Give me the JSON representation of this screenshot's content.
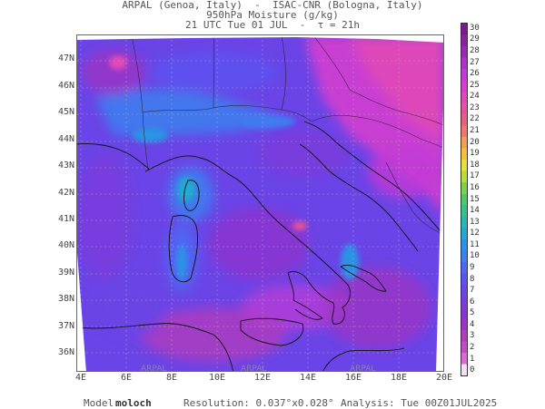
{
  "header": {
    "line1": "ARPAL (Genoa, Italy)  -  ISAC-CNR (Bologna, Italy)",
    "line2": "950hPa Moisture (g/kg)",
    "line3": "21 UTC Tue 01 JUL  -  τ = 21h"
  },
  "map": {
    "lat_labels": [
      "47N",
      "46N",
      "45N",
      "44N",
      "43N",
      "42N",
      "41N",
      "40N",
      "39N",
      "38N",
      "37N",
      "36N"
    ],
    "lon_labels": [
      "4E",
      "6E",
      "8E",
      "10E",
      "12E",
      "14E",
      "16E",
      "18E",
      "20E"
    ],
    "watermark": "ARPAL"
  },
  "colorbar": {
    "labels": [
      "30",
      "29",
      "28",
      "27",
      "26",
      "25",
      "24",
      "23",
      "22",
      "21",
      "20",
      "19",
      "18",
      "17",
      "16",
      "15",
      "14",
      "13",
      "12",
      "11",
      "10",
      "9",
      "8",
      "7",
      "6",
      "5",
      "4",
      "3",
      "2",
      "1",
      "0"
    ],
    "colors": {
      "30": "#7a1a8c",
      "29": "#8a1fa0",
      "28": "#9b27b5",
      "27": "#ad33c8",
      "26": "#c23ad6",
      "25": "#d43fcf",
      "24": "#e048b8",
      "23": "#e4539e",
      "22": "#e85f84",
      "21": "#ec7a68",
      "20": "#f0a050",
      "19": "#f3c040",
      "18": "#e9dd3a",
      "17": "#b6dd3c",
      "16": "#7bd34a",
      "15": "#4fc86a",
      "14": "#36c08f",
      "13": "#2ab6b3",
      "12": "#22a8d2",
      "11": "#2a93e6",
      "10": "#3f7df0",
      "9": "#4f66f3",
      "8": "#5d52f0",
      "7": "#6a44e6",
      "6": "#7a3bdc",
      "5": "#8a35d0",
      "4": "#9b34c4",
      "3": "#b03cbe",
      "2": "#c24cc4",
      "1": "#d86ad4",
      "0": "#f4e0f6"
    }
  },
  "footer": {
    "model_label": "Model: ",
    "model_value": "moloch",
    "resolution": "Resolution: 0.037°x0.028°",
    "analysis": "Analysis: Tue 00Z01JUL2025"
  }
}
